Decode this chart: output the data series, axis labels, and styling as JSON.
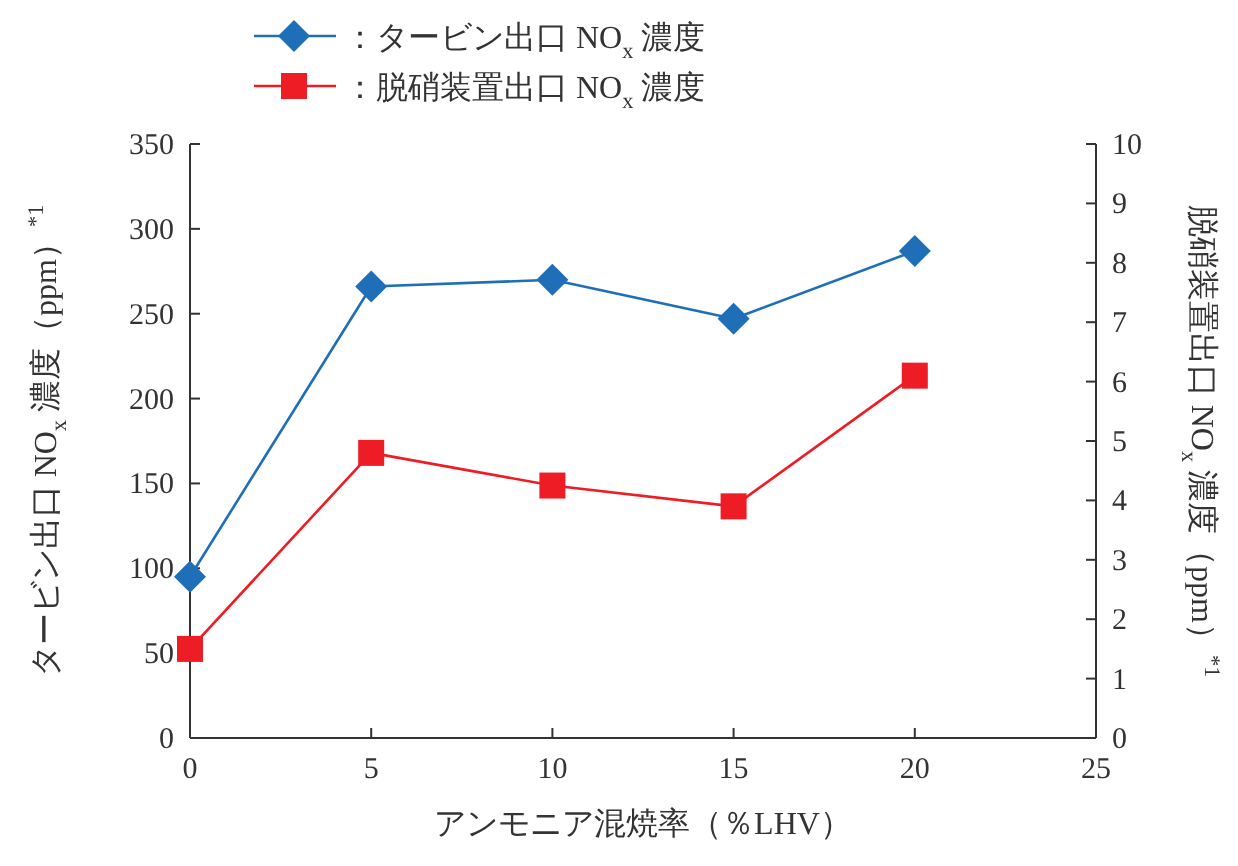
{
  "chart_data": {
    "type": "line",
    "xlabel": "アンモニア混焼率（％LHV）",
    "ylabel": "タービン出口 NO$_{x}$ 濃度（ppm）$^{*1}$",
    "y2label": "脱硝装置出口 NO$_{x}$ 濃度（ppm）$^{*1}$",
    "x": [
      0,
      5,
      10,
      15,
      20
    ],
    "xlim": [
      0,
      25
    ],
    "xticks": [
      0,
      5,
      10,
      15,
      20,
      25
    ],
    "ylim": [
      0,
      350
    ],
    "yticks": [
      0,
      50,
      100,
      150,
      200,
      250,
      300,
      350
    ],
    "y2lim": [
      0,
      10
    ],
    "y2ticks": [
      0,
      1,
      2,
      3,
      4,
      5,
      6,
      7,
      8,
      9,
      10
    ],
    "legend": "top",
    "series": [
      {
        "name": "：タービン出口 NO$_{x}$ 濃度",
        "color": "#1f6fb8",
        "marker": "diamond",
        "axis": "y",
        "values": [
          95,
          266,
          270,
          247,
          287
        ]
      },
      {
        "name": "：脱硝装置出口 NO$_{x}$ 濃度",
        "color": "#ee1c25",
        "marker": "square",
        "axis": "y2",
        "values": [
          1.5,
          4.8,
          4.25,
          3.9,
          6.1
        ]
      }
    ]
  }
}
